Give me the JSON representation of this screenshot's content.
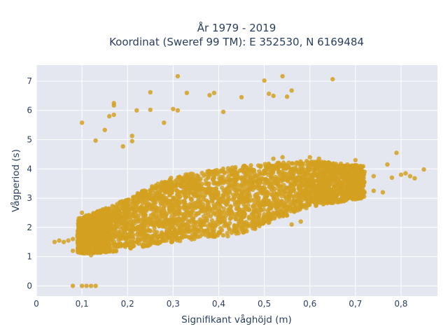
{
  "chart_data": {
    "type": "scatter",
    "title_lines": [
      "År 1979 - 2019",
      "Koordinat (Sweref 99 TM): E 352530, N 6169484"
    ],
    "xlabel": "Signifikant våghöjd (m)",
    "ylabel": "Vågperiod (s)",
    "xlim": [
      0,
      0.88
    ],
    "ylim": [
      -0.35,
      7.55
    ],
    "x_ticks": [
      0,
      0.1,
      0.2,
      0.3,
      0.4,
      0.5,
      0.6,
      0.7,
      0.8
    ],
    "x_tick_labels": [
      "0",
      "0,1",
      "0,2",
      "0,3",
      "0,4",
      "0,5",
      "0,6",
      "0,7",
      "0,8"
    ],
    "y_ticks": [
      0,
      1,
      2,
      3,
      4,
      5,
      6,
      7
    ],
    "y_tick_labels": [
      "0",
      "1",
      "2",
      "3",
      "4",
      "5",
      "6",
      "7"
    ],
    "grid": true,
    "series": [
      {
        "color": "#d4a020",
        "points": [
          [
            0.04,
            1.5
          ],
          [
            0.05,
            1.55
          ],
          [
            0.06,
            1.5
          ],
          [
            0.07,
            1.55
          ],
          [
            0.08,
            1.6
          ],
          [
            0.08,
            1.2
          ],
          [
            0.08,
            0.0
          ],
          [
            0.1,
            0.0
          ],
          [
            0.11,
            0.0
          ],
          [
            0.12,
            0.0
          ],
          [
            0.13,
            0.0
          ],
          [
            0.1,
            5.58
          ],
          [
            0.13,
            4.97
          ],
          [
            0.15,
            5.33
          ],
          [
            0.16,
            5.8
          ],
          [
            0.17,
            6.17
          ],
          [
            0.17,
            5.85
          ],
          [
            0.17,
            6.25
          ],
          [
            0.19,
            4.77
          ],
          [
            0.21,
            5.13
          ],
          [
            0.21,
            4.95
          ],
          [
            0.22,
            6.0
          ],
          [
            0.25,
            6.62
          ],
          [
            0.25,
            6.02
          ],
          [
            0.28,
            5.58
          ],
          [
            0.3,
            6.05
          ],
          [
            0.31,
            6.0
          ],
          [
            0.31,
            7.17
          ],
          [
            0.33,
            6.6
          ],
          [
            0.38,
            6.52
          ],
          [
            0.39,
            6.6
          ],
          [
            0.41,
            5.95
          ],
          [
            0.45,
            6.45
          ],
          [
            0.5,
            7.02
          ],
          [
            0.51,
            6.57
          ],
          [
            0.52,
            6.5
          ],
          [
            0.54,
            7.17
          ],
          [
            0.55,
            6.47
          ],
          [
            0.56,
            6.68
          ],
          [
            0.65,
            7.07
          ],
          [
            0.66,
            3.95
          ],
          [
            0.68,
            3.8
          ],
          [
            0.7,
            4.3
          ],
          [
            0.72,
            3.9
          ],
          [
            0.74,
            3.75
          ],
          [
            0.76,
            3.2
          ],
          [
            0.77,
            4.15
          ],
          [
            0.78,
            3.7
          ],
          [
            0.79,
            4.55
          ],
          [
            0.8,
            3.8
          ],
          [
            0.81,
            3.85
          ],
          [
            0.82,
            3.75
          ],
          [
            0.83,
            3.68
          ],
          [
            0.85,
            3.98
          ],
          [
            0.6,
            2.9
          ],
          [
            0.62,
            3.0
          ],
          [
            0.64,
            3.05
          ],
          [
            0.66,
            3.1
          ],
          [
            0.68,
            3.1
          ],
          [
            0.7,
            3.15
          ],
          [
            0.72,
            3.2
          ],
          [
            0.74,
            3.25
          ],
          [
            0.5,
            2.45
          ],
          [
            0.52,
            2.5
          ],
          [
            0.54,
            2.55
          ],
          [
            0.56,
            2.1
          ],
          [
            0.58,
            2.2
          ],
          [
            0.45,
            2.0
          ],
          [
            0.47,
            2.05
          ],
          [
            0.48,
            1.95
          ],
          [
            0.42,
            1.7
          ],
          [
            0.1,
            2.5
          ],
          [
            0.12,
            1.05
          ],
          [
            0.14,
            1.15
          ],
          [
            0.16,
            1.2
          ],
          [
            0.2,
            1.4
          ],
          [
            0.6,
            4.4
          ],
          [
            0.62,
            4.35
          ],
          [
            0.58,
            4.2
          ],
          [
            0.54,
            4.4
          ],
          [
            0.52,
            4.35
          ]
        ]
      }
    ],
    "bands": [
      {
        "x0": 0.09,
        "x1": 0.16,
        "ylo0": 1.1,
        "yhi0": 2.3,
        "ylo1": 1.15,
        "yhi1": 2.7
      },
      {
        "x0": 0.16,
        "x1": 0.3,
        "ylo0": 1.15,
        "yhi0": 2.7,
        "ylo1": 1.5,
        "yhi1": 3.75
      },
      {
        "x0": 0.3,
        "x1": 0.45,
        "ylo0": 1.5,
        "yhi0": 3.75,
        "ylo1": 1.8,
        "yhi1": 4.1
      },
      {
        "x0": 0.45,
        "x1": 0.6,
        "ylo0": 1.8,
        "yhi0": 4.1,
        "ylo1": 2.7,
        "yhi1": 4.3
      },
      {
        "x0": 0.6,
        "x1": 0.72,
        "ylo0": 2.7,
        "yhi0": 4.3,
        "ylo1": 3.0,
        "yhi1": 4.1
      }
    ]
  }
}
